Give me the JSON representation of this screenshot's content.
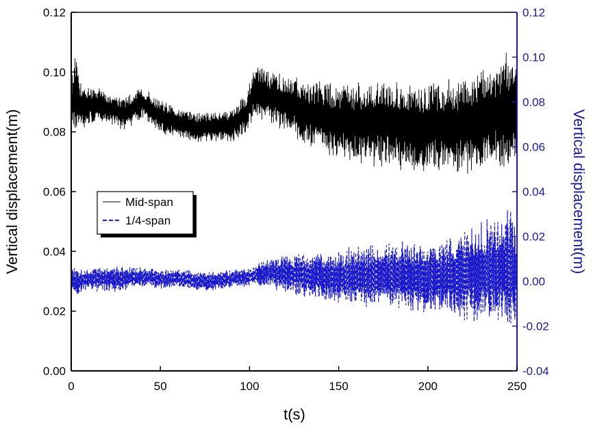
{
  "chart_data": {
    "type": "line",
    "title": "",
    "xlabel": "t(s)",
    "ylabel_left": "Vertical displacement(m)",
    "ylabel_right": "Vertical displacement(m)",
    "xlim": [
      0,
      250
    ],
    "ylim_left": [
      0.0,
      0.12
    ],
    "ylim_right": [
      -0.04,
      0.12
    ],
    "x_ticks": [
      "0",
      "50",
      "100",
      "150",
      "200",
      "250"
    ],
    "y_ticks_left": [
      "0.00",
      "0.02",
      "0.04",
      "0.06",
      "0.08",
      "0.10",
      "0.12"
    ],
    "y_ticks_right": [
      "-0.04",
      "-0.02",
      "0.00",
      "0.02",
      "0.04",
      "0.06",
      "0.08",
      "0.10",
      "0.12"
    ],
    "grid": false,
    "legend_position": "middle-left",
    "colors": {
      "axis_right": "#1a1a99",
      "mid_span": "#000000",
      "quarter_span": "#1a1acc"
    },
    "series": [
      {
        "name": "Mid-span",
        "axis": "left",
        "style": "solid",
        "x": [
          0,
          2,
          5,
          10,
          20,
          30,
          40,
          50,
          60,
          70,
          80,
          90,
          98,
          103,
          110,
          120,
          130,
          140,
          150,
          160,
          170,
          180,
          190,
          200,
          210,
          220,
          230,
          240,
          245,
          250
        ],
        "center": [
          0.09,
          0.092,
          0.089,
          0.089,
          0.088,
          0.086,
          0.09,
          0.085,
          0.083,
          0.081,
          0.082,
          0.082,
          0.086,
          0.094,
          0.092,
          0.09,
          0.087,
          0.085,
          0.084,
          0.083,
          0.083,
          0.083,
          0.081,
          0.082,
          0.082,
          0.082,
          0.084,
          0.086,
          0.087,
          0.086
        ],
        "amplitude": [
          0.006,
          0.012,
          0.008,
          0.006,
          0.005,
          0.005,
          0.005,
          0.005,
          0.005,
          0.005,
          0.005,
          0.005,
          0.006,
          0.008,
          0.008,
          0.009,
          0.01,
          0.011,
          0.012,
          0.012,
          0.013,
          0.014,
          0.014,
          0.014,
          0.014,
          0.015,
          0.016,
          0.017,
          0.018,
          0.016
        ]
      },
      {
        "name": "1/4-span",
        "axis": "right",
        "style": "dashed",
        "x": [
          0,
          5,
          10,
          20,
          30,
          40,
          50,
          60,
          70,
          80,
          90,
          100,
          110,
          120,
          130,
          140,
          150,
          160,
          170,
          180,
          190,
          200,
          210,
          220,
          230,
          240,
          245,
          250
        ],
        "center": [
          0.0,
          0.0,
          0.001,
          0.001,
          0.001,
          0.002,
          0.001,
          0.001,
          0.0,
          0.0,
          0.001,
          0.002,
          0.004,
          0.003,
          0.003,
          0.002,
          0.002,
          0.002,
          0.002,
          0.003,
          0.002,
          0.002,
          0.002,
          0.003,
          0.004,
          0.005,
          0.006,
          0.005
        ],
        "amplitude": [
          0.006,
          0.005,
          0.005,
          0.005,
          0.005,
          0.004,
          0.004,
          0.004,
          0.004,
          0.004,
          0.004,
          0.004,
          0.006,
          0.008,
          0.009,
          0.01,
          0.011,
          0.012,
          0.013,
          0.013,
          0.014,
          0.015,
          0.016,
          0.018,
          0.02,
          0.022,
          0.024,
          0.02
        ]
      }
    ]
  }
}
